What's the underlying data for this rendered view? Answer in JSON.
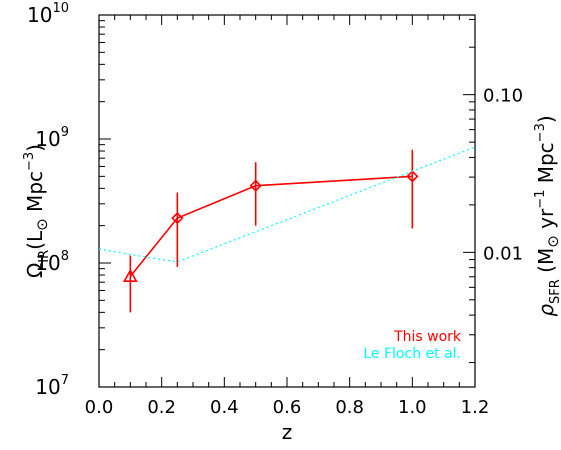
{
  "chart_data": {
    "type": "line",
    "xlabel": "z",
    "ylabel_left": {
      "main": "Ω",
      "sub": "IR",
      "rest": "(L",
      "sun": "⊙",
      "unit": " Mpc",
      "sup": "−3",
      "close": ")"
    },
    "ylabel_right": {
      "main": "ρ",
      "sub": "SFR",
      "rest": " (M",
      "sun": "⊙",
      "unit1": " yr",
      "sup1": "−1",
      "unit2": " Mpc",
      "sup2": "−3",
      "close": ")"
    },
    "xlim": [
      0.0,
      1.2
    ],
    "ylim_left": [
      10000000.0,
      10000000000.0
    ],
    "ylim_right": [
      0.0014,
      0.32
    ],
    "yscale": "log",
    "x_ticks": [
      "0.0",
      "0.2",
      "0.4",
      "0.6",
      "0.8",
      "1.0",
      "1.2"
    ],
    "y_left_ticks": [
      {
        "base": "10",
        "exp": "7"
      },
      {
        "base": "10",
        "exp": "8"
      },
      {
        "base": "10",
        "exp": "9"
      },
      {
        "base": "10",
        "exp": "10"
      }
    ],
    "y_right_ticks": [
      "0.01",
      "0.10"
    ],
    "grid": false,
    "legend_position": "bottom-right",
    "series": [
      {
        "name": "This work",
        "color": "#ff0000",
        "style": "solid",
        "points": [
          {
            "x": 0.1,
            "y": 78000000.0,
            "err_low": 40000000.0,
            "err_high": 115000000.0,
            "marker": "triangle"
          },
          {
            "x": 0.25,
            "y": 230000000.0,
            "err_low": 93000000.0,
            "err_high": 370000000.0,
            "marker": "diamond"
          },
          {
            "x": 0.5,
            "y": 420000000.0,
            "err_low": 200000000.0,
            "err_high": 650000000.0,
            "marker": "diamond"
          },
          {
            "x": 1.0,
            "y": 500000000.0,
            "err_low": 190000000.0,
            "err_high": 820000000.0,
            "marker": "diamond"
          }
        ]
      },
      {
        "name": "Le Floch et al.",
        "color": "#00ffff",
        "style": "dotted",
        "points": [
          {
            "x": 0.0,
            "y": 130000000.0
          },
          {
            "x": 0.1,
            "y": 117000000.0
          },
          {
            "x": 0.25,
            "y": 102000000.0
          },
          {
            "x": 1.2,
            "y": 860000000.0
          }
        ]
      }
    ]
  }
}
